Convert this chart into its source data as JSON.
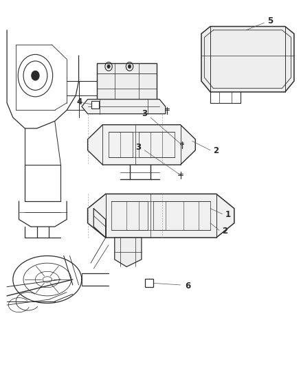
{
  "background_color": "#ffffff",
  "line_color": "#2a2a2a",
  "figure_width": 4.38,
  "figure_height": 5.33,
  "dpi": 100
}
